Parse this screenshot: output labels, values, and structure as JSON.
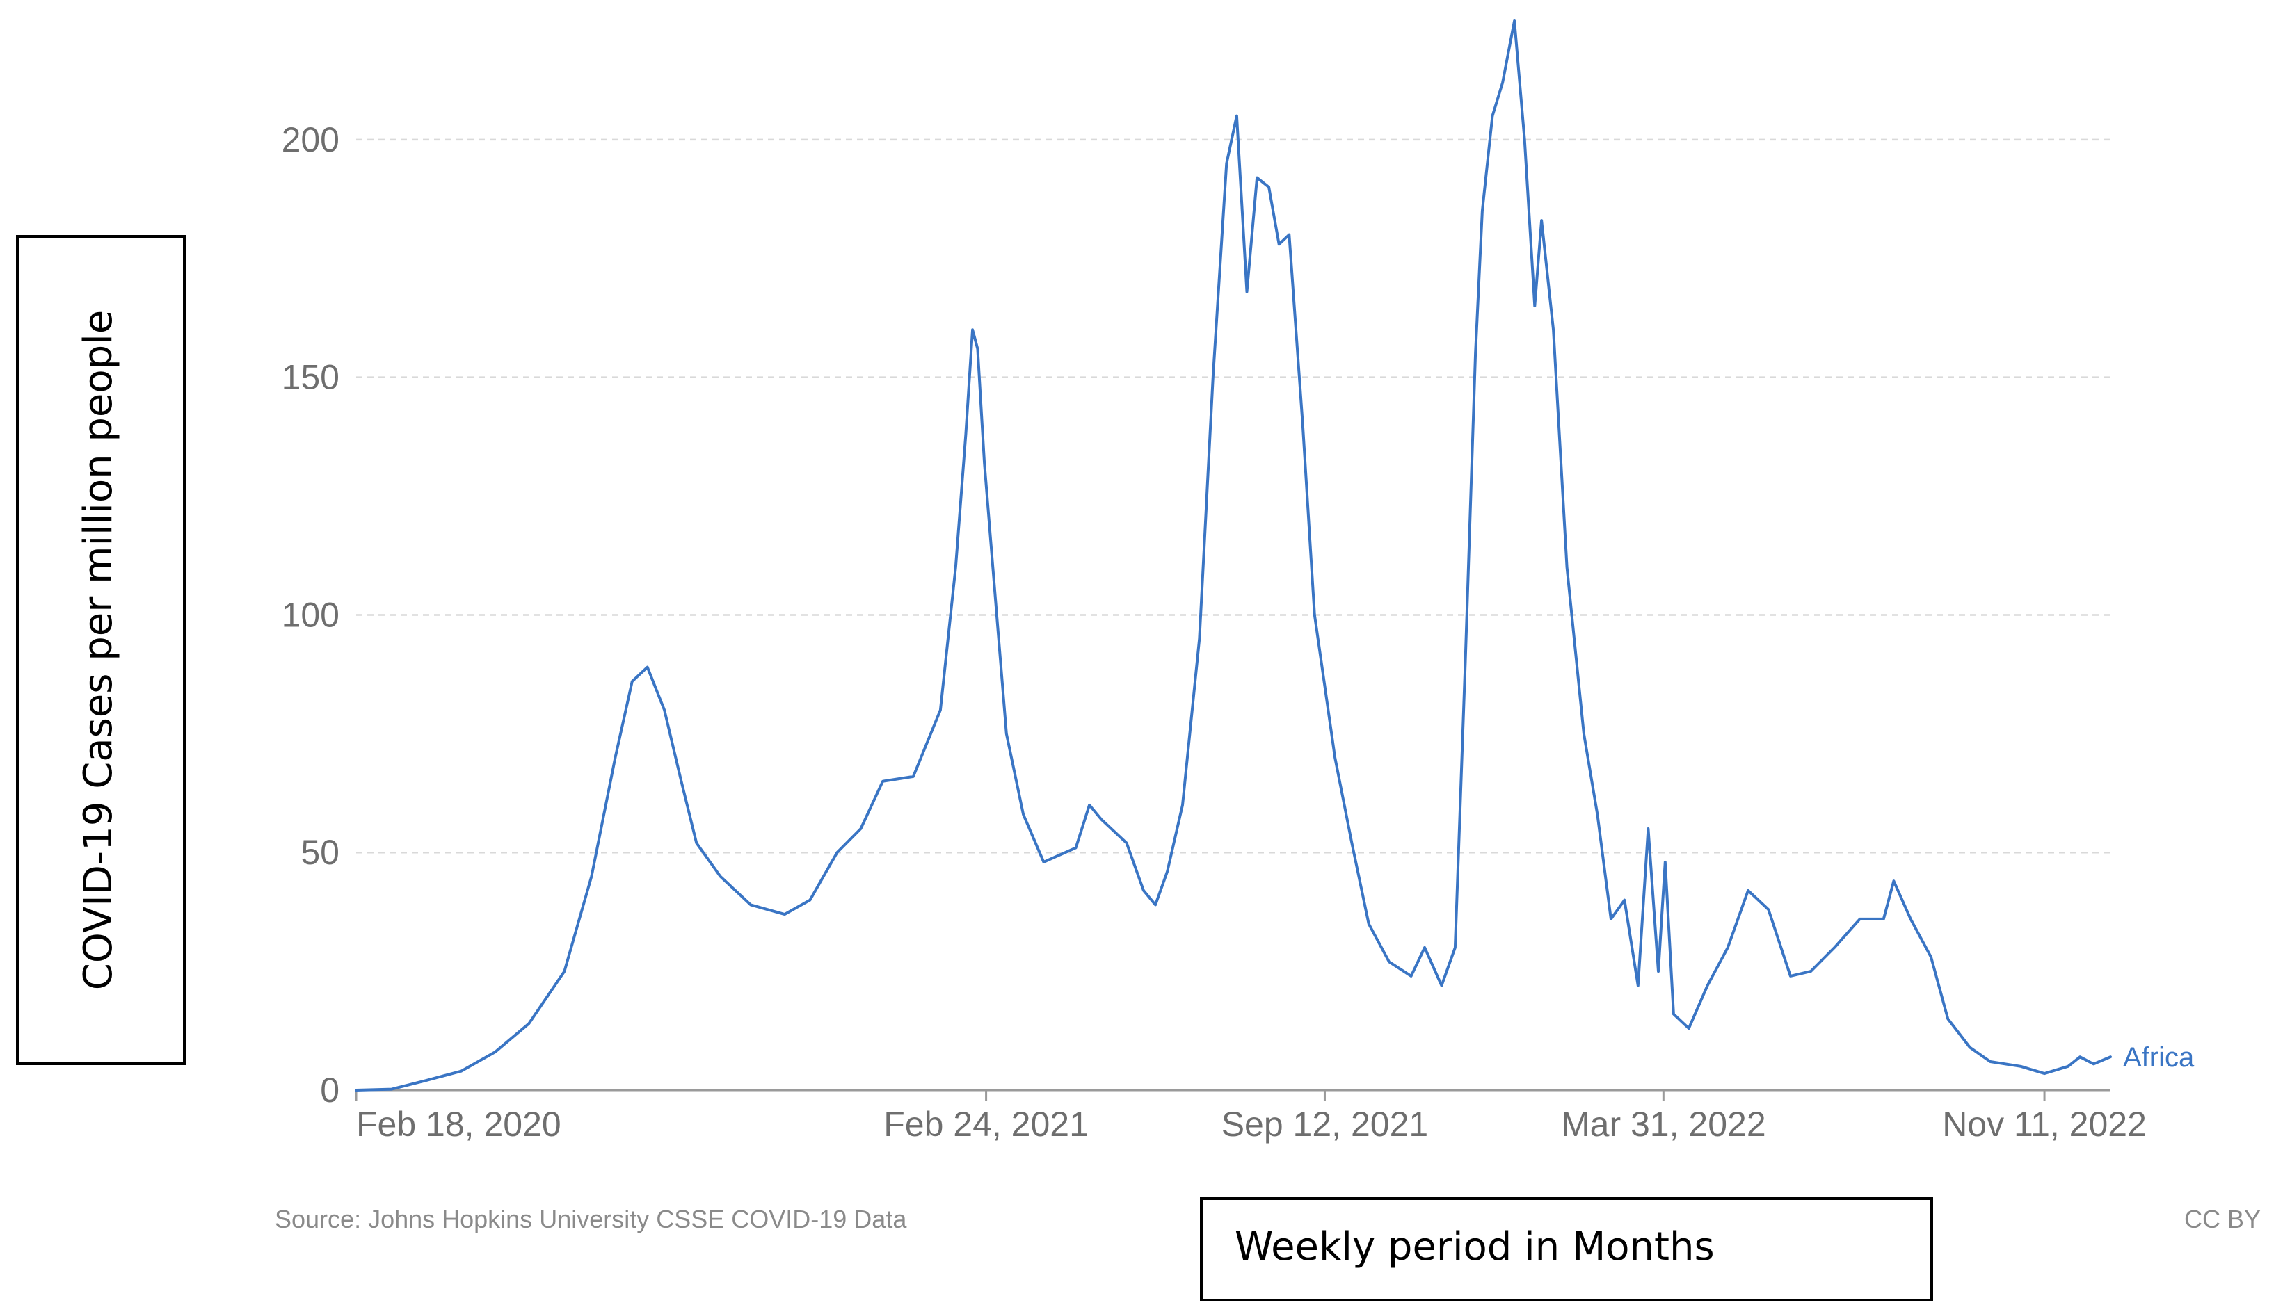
{
  "chart_data": {
    "type": "line",
    "title": "",
    "xlabel": "Weekly period in Months",
    "ylabel": "COVID-19 Cases per million people",
    "ylim": [
      0,
      225
    ],
    "x_range": [
      "2020-02-18",
      "2022-12-20"
    ],
    "y_ticks": [
      0,
      50,
      100,
      150,
      200
    ],
    "x_ticks": [
      {
        "date": "2020-02-18",
        "label": "Feb 18, 2020"
      },
      {
        "date": "2021-02-24",
        "label": "Feb 24, 2021"
      },
      {
        "date": "2021-09-12",
        "label": "Sep 12, 2021"
      },
      {
        "date": "2022-03-31",
        "label": "Mar 31, 2022"
      },
      {
        "date": "2022-11-11",
        "label": "Nov 11, 2022"
      }
    ],
    "grid": true,
    "series": [
      {
        "name": "Africa",
        "color": "#3a75c4",
        "points": [
          [
            "2020-02-18",
            0
          ],
          [
            "2020-03-10",
            0.2
          ],
          [
            "2020-03-30",
            2
          ],
          [
            "2020-04-20",
            4
          ],
          [
            "2020-05-10",
            8
          ],
          [
            "2020-05-30",
            14
          ],
          [
            "2020-06-20",
            25
          ],
          [
            "2020-07-06",
            45
          ],
          [
            "2020-07-20",
            70
          ],
          [
            "2020-07-30",
            86
          ],
          [
            "2020-08-08",
            89
          ],
          [
            "2020-08-18",
            80
          ],
          [
            "2020-08-28",
            65
          ],
          [
            "2020-09-06",
            52
          ],
          [
            "2020-09-20",
            45
          ],
          [
            "2020-10-08",
            39
          ],
          [
            "2020-10-28",
            37
          ],
          [
            "2020-11-12",
            40
          ],
          [
            "2020-11-28",
            50
          ],
          [
            "2020-12-12",
            55
          ],
          [
            "2020-12-25",
            65
          ],
          [
            "2021-01-12",
            66
          ],
          [
            "2021-01-28",
            80
          ],
          [
            "2021-02-06",
            110
          ],
          [
            "2021-02-12",
            138
          ],
          [
            "2021-02-16",
            160
          ],
          [
            "2021-02-19",
            156
          ],
          [
            "2021-02-23",
            132
          ],
          [
            "2021-02-28",
            110
          ],
          [
            "2021-03-08",
            75
          ],
          [
            "2021-03-18",
            58
          ],
          [
            "2021-03-30",
            48
          ],
          [
            "2021-04-18",
            51
          ],
          [
            "2021-04-26",
            60
          ],
          [
            "2021-05-03",
            57
          ],
          [
            "2021-05-18",
            52
          ],
          [
            "2021-05-28",
            42
          ],
          [
            "2021-06-04",
            39
          ],
          [
            "2021-06-11",
            46
          ],
          [
            "2021-06-20",
            60
          ],
          [
            "2021-06-30",
            95
          ],
          [
            "2021-07-08",
            150
          ],
          [
            "2021-07-16",
            195
          ],
          [
            "2021-07-22",
            205
          ],
          [
            "2021-07-28",
            168
          ],
          [
            "2021-08-03",
            192
          ],
          [
            "2021-08-10",
            190
          ],
          [
            "2021-08-16",
            178
          ],
          [
            "2021-08-22",
            180
          ],
          [
            "2021-08-30",
            140
          ],
          [
            "2021-09-06",
            100
          ],
          [
            "2021-09-12",
            85
          ],
          [
            "2021-09-18",
            70
          ],
          [
            "2021-09-28",
            52
          ],
          [
            "2021-10-08",
            35
          ],
          [
            "2021-10-20",
            27
          ],
          [
            "2021-11-02",
            24
          ],
          [
            "2021-11-10",
            30
          ],
          [
            "2021-11-20",
            22
          ],
          [
            "2021-11-28",
            30
          ],
          [
            "2021-12-04",
            90
          ],
          [
            "2021-12-10",
            155
          ],
          [
            "2021-12-14",
            185
          ],
          [
            "2021-12-20",
            205
          ],
          [
            "2021-12-26",
            212
          ],
          [
            "2022-01-02",
            225
          ],
          [
            "2022-01-08",
            200
          ],
          [
            "2022-01-14",
            165
          ],
          [
            "2022-01-18",
            183
          ],
          [
            "2022-01-25",
            160
          ],
          [
            "2022-02-02",
            110
          ],
          [
            "2022-02-12",
            75
          ],
          [
            "2022-02-20",
            58
          ],
          [
            "2022-02-28",
            36
          ],
          [
            "2022-03-08",
            40
          ],
          [
            "2022-03-16",
            22
          ],
          [
            "2022-03-22",
            55
          ],
          [
            "2022-03-28",
            25
          ],
          [
            "2022-04-01",
            48
          ],
          [
            "2022-04-06",
            16
          ],
          [
            "2022-04-15",
            13
          ],
          [
            "2022-04-26",
            22
          ],
          [
            "2022-05-08",
            30
          ],
          [
            "2022-05-20",
            42
          ],
          [
            "2022-06-01",
            38
          ],
          [
            "2022-06-14",
            24
          ],
          [
            "2022-06-26",
            25
          ],
          [
            "2022-07-10",
            30
          ],
          [
            "2022-07-25",
            36
          ],
          [
            "2022-08-08",
            36
          ],
          [
            "2022-08-14",
            44
          ],
          [
            "2022-08-24",
            36
          ],
          [
            "2022-09-05",
            28
          ],
          [
            "2022-09-15",
            15
          ],
          [
            "2022-09-28",
            9
          ],
          [
            "2022-10-10",
            6
          ],
          [
            "2022-10-28",
            5
          ],
          [
            "2022-11-11",
            3.5
          ],
          [
            "2022-11-25",
            5
          ],
          [
            "2022-12-02",
            7
          ],
          [
            "2022-12-10",
            5.5
          ],
          [
            "2022-12-20",
            7
          ]
        ]
      }
    ],
    "source_note": "Source: Johns Hopkins University CSSE COVID-19 Data",
    "license_note": "CC BY"
  }
}
